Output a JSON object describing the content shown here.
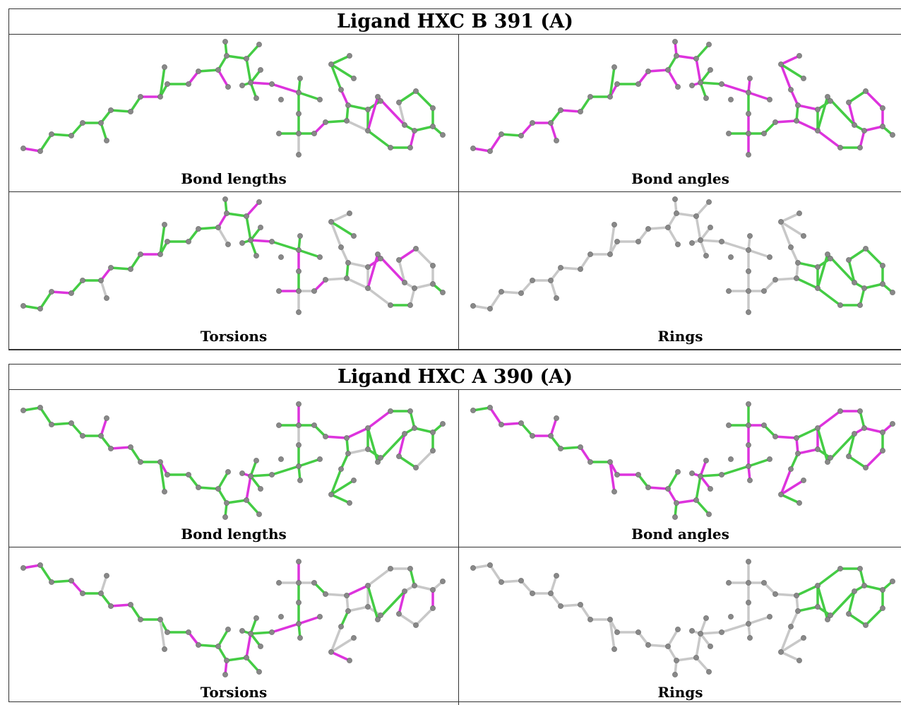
{
  "tables": [
    {
      "title": "Ligand HXC B 391 (A)",
      "panels": [
        {
          "label": "Bond lengths"
        },
        {
          "label": "Bond angles"
        },
        {
          "label": "Torsions"
        },
        {
          "label": "Rings"
        }
      ]
    },
    {
      "title": "Ligand HXC A 390 (A)",
      "panels": [
        {
          "label": "Bond lengths"
        },
        {
          "label": "Bond angles"
        },
        {
          "label": "Torsions"
        },
        {
          "label": "Rings"
        }
      ]
    }
  ]
}
